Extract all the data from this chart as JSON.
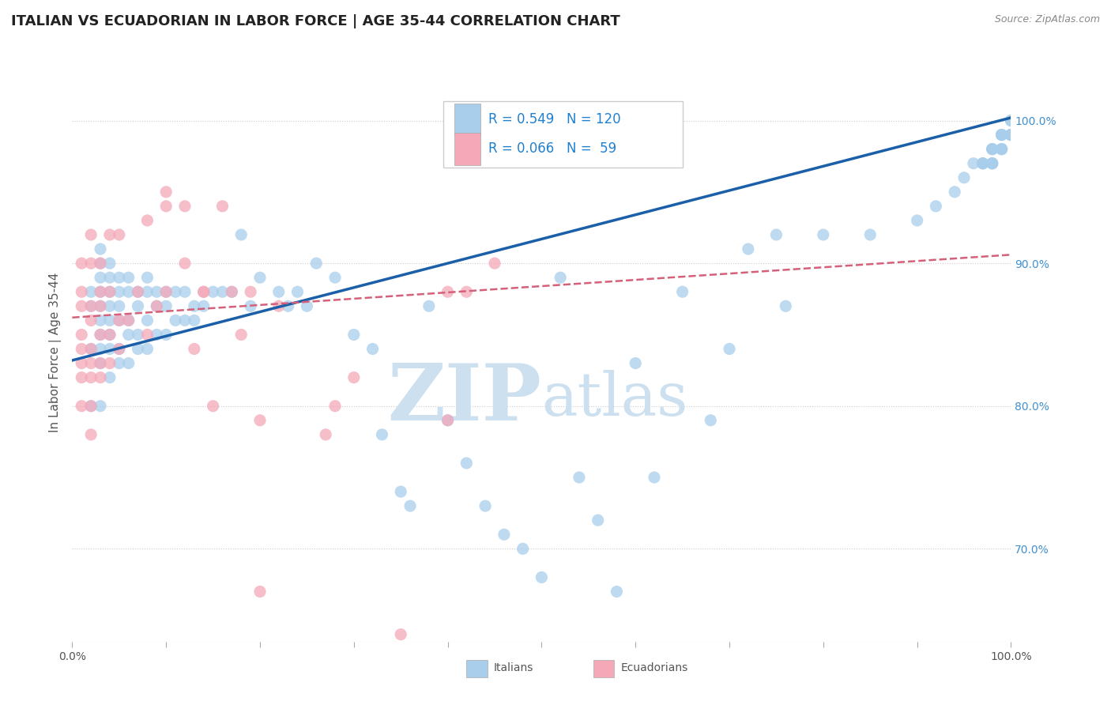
{
  "title": "ITALIAN VS ECUADORIAN IN LABOR FORCE | AGE 35-44 CORRELATION CHART",
  "source_text": "Source: ZipAtlas.com",
  "ylabel": "In Labor Force | Age 35-44",
  "xlim": [
    0.0,
    1.0
  ],
  "ylim": [
    0.635,
    1.04
  ],
  "ytick_positions": [
    0.7,
    0.8,
    0.9,
    1.0
  ],
  "ytick_labels": [
    "70.0%",
    "80.0%",
    "90.0%",
    "100.0%"
  ],
  "xtick_positions": [
    0.0,
    0.1,
    0.2,
    0.3,
    0.4,
    0.5,
    0.6,
    0.7,
    0.8,
    0.9,
    1.0
  ],
  "legend_italian_r": "0.549",
  "legend_italian_n": "120",
  "legend_ecuadorian_r": "0.066",
  "legend_ecuadorian_n": " 59",
  "italian_color": "#a8ceec",
  "ecuadorian_color": "#f4a8b8",
  "italian_line_color": "#1a5fa8",
  "ecuadorian_line_color": "#d4607a",
  "background_color": "#ffffff",
  "watermark_color": "#cce0f0",
  "title_fontsize": 13,
  "axis_label_fontsize": 11,
  "tick_fontsize": 10,
  "italian_trend_x0": 0.0,
  "italian_trend_y0": 0.832,
  "italian_trend_x1": 1.0,
  "italian_trend_y1": 1.002,
  "ecuadorian_trend_x0": 0.0,
  "ecuadorian_trend_y0": 0.862,
  "ecuadorian_trend_x1": 1.0,
  "ecuadorian_trend_y1": 0.906,
  "italian_x": [
    0.02,
    0.02,
    0.02,
    0.02,
    0.03,
    0.03,
    0.03,
    0.03,
    0.03,
    0.03,
    0.03,
    0.03,
    0.03,
    0.03,
    0.04,
    0.04,
    0.04,
    0.04,
    0.04,
    0.04,
    0.04,
    0.04,
    0.05,
    0.05,
    0.05,
    0.05,
    0.05,
    0.05,
    0.06,
    0.06,
    0.06,
    0.06,
    0.06,
    0.07,
    0.07,
    0.07,
    0.07,
    0.08,
    0.08,
    0.08,
    0.08,
    0.09,
    0.09,
    0.09,
    0.1,
    0.1,
    0.1,
    0.11,
    0.11,
    0.12,
    0.12,
    0.13,
    0.13,
    0.14,
    0.15,
    0.16,
    0.17,
    0.18,
    0.19,
    0.2,
    0.22,
    0.23,
    0.24,
    0.25,
    0.26,
    0.28,
    0.3,
    0.32,
    0.33,
    0.35,
    0.36,
    0.38,
    0.4,
    0.42,
    0.44,
    0.46,
    0.48,
    0.5,
    0.52,
    0.54,
    0.56,
    0.58,
    0.6,
    0.62,
    0.65,
    0.68,
    0.7,
    0.72,
    0.75,
    0.76,
    0.8,
    0.85,
    0.9,
    0.92,
    0.94,
    0.95,
    0.96,
    0.97,
    0.97,
    0.97,
    0.98,
    0.98,
    0.98,
    0.98,
    0.98,
    0.98,
    0.99,
    0.99,
    0.99,
    0.99,
    0.99,
    0.99,
    1.0,
    1.0,
    1.0,
    1.0,
    1.0,
    1.0,
    1.0,
    1.0
  ],
  "italian_y": [
    0.8,
    0.84,
    0.87,
    0.88,
    0.8,
    0.83,
    0.84,
    0.85,
    0.86,
    0.87,
    0.88,
    0.89,
    0.9,
    0.91,
    0.82,
    0.84,
    0.85,
    0.86,
    0.87,
    0.88,
    0.89,
    0.9,
    0.83,
    0.84,
    0.86,
    0.87,
    0.88,
    0.89,
    0.83,
    0.85,
    0.86,
    0.88,
    0.89,
    0.84,
    0.85,
    0.87,
    0.88,
    0.84,
    0.86,
    0.88,
    0.89,
    0.85,
    0.87,
    0.88,
    0.85,
    0.87,
    0.88,
    0.86,
    0.88,
    0.86,
    0.88,
    0.86,
    0.87,
    0.87,
    0.88,
    0.88,
    0.88,
    0.92,
    0.87,
    0.89,
    0.88,
    0.87,
    0.88,
    0.87,
    0.9,
    0.89,
    0.85,
    0.84,
    0.78,
    0.74,
    0.73,
    0.87,
    0.79,
    0.76,
    0.73,
    0.71,
    0.7,
    0.68,
    0.89,
    0.75,
    0.72,
    0.67,
    0.83,
    0.75,
    0.88,
    0.79,
    0.84,
    0.91,
    0.92,
    0.87,
    0.92,
    0.92,
    0.93,
    0.94,
    0.95,
    0.96,
    0.97,
    0.97,
    0.97,
    0.97,
    0.97,
    0.97,
    0.98,
    0.98,
    0.97,
    0.98,
    0.98,
    0.98,
    0.99,
    0.98,
    0.99,
    0.99,
    0.99,
    0.99,
    0.99,
    0.99,
    0.99,
    0.99,
    1.0,
    1.0
  ],
  "ecuadorian_x": [
    0.01,
    0.01,
    0.01,
    0.01,
    0.01,
    0.01,
    0.01,
    0.01,
    0.02,
    0.02,
    0.02,
    0.02,
    0.02,
    0.02,
    0.02,
    0.02,
    0.02,
    0.03,
    0.03,
    0.03,
    0.03,
    0.03,
    0.03,
    0.04,
    0.04,
    0.04,
    0.04,
    0.05,
    0.05,
    0.05,
    0.06,
    0.07,
    0.08,
    0.08,
    0.09,
    0.1,
    0.1,
    0.12,
    0.13,
    0.14,
    0.15,
    0.17,
    0.18,
    0.19,
    0.2,
    0.22,
    0.27,
    0.28,
    0.3,
    0.35,
    0.4,
    0.4,
    0.42,
    0.45,
    0.1,
    0.12,
    0.14,
    0.16,
    0.2
  ],
  "ecuadorian_y": [
    0.8,
    0.82,
    0.83,
    0.84,
    0.85,
    0.87,
    0.88,
    0.9,
    0.78,
    0.8,
    0.82,
    0.83,
    0.84,
    0.86,
    0.87,
    0.9,
    0.92,
    0.82,
    0.83,
    0.85,
    0.87,
    0.88,
    0.9,
    0.83,
    0.85,
    0.88,
    0.92,
    0.84,
    0.86,
    0.92,
    0.86,
    0.88,
    0.85,
    0.93,
    0.87,
    0.88,
    0.94,
    0.94,
    0.84,
    0.88,
    0.8,
    0.88,
    0.85,
    0.88,
    0.79,
    0.87,
    0.78,
    0.8,
    0.82,
    0.64,
    0.88,
    0.79,
    0.88,
    0.9,
    0.95,
    0.9,
    0.88,
    0.94,
    0.67
  ]
}
